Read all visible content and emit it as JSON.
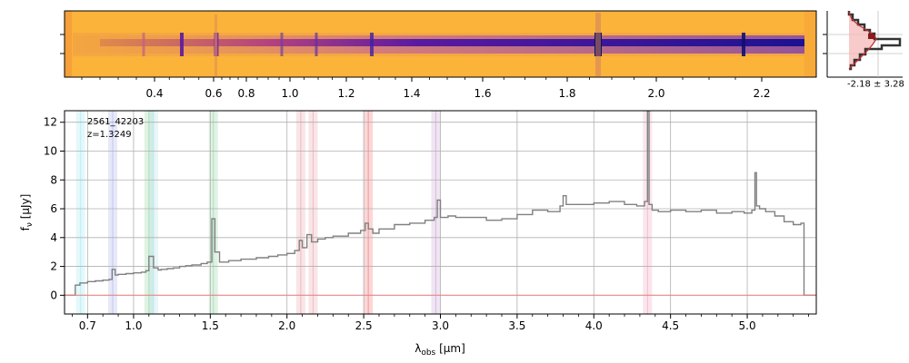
{
  "spectrum_2d": {
    "tick_labels": [
      "0.4",
      "0.6",
      "0.8",
      "1.0",
      "1.2",
      "1.4",
      "1.6",
      "1.8",
      "2.0",
      "2.2"
    ],
    "tick_values": [
      0.4,
      0.6,
      0.8,
      1.0,
      1.2,
      1.4,
      1.6,
      1.8,
      2.0,
      2.2
    ],
    "colormap": [
      "#fcb43a",
      "#f0853f",
      "#c94a6c",
      "#8a2aa0",
      "#3b0f96",
      "#1a1180"
    ]
  },
  "profile_panel": {
    "label": "-2.18 ± 3.28"
  },
  "chart_data": {
    "type": "line",
    "annotations": [
      "2561_42203",
      "z=1.3249"
    ],
    "xlabel": "λobs [μm]",
    "ylabel": "fν [μJy]",
    "xlim": [
      0.55,
      5.45
    ],
    "ylim": [
      -1.3,
      12.8
    ],
    "x_ticks": [
      0.7,
      1.0,
      1.5,
      2.0,
      2.5,
      3.0,
      3.5,
      4.0,
      4.5,
      5.0
    ],
    "x_tick_labels": [
      "0.7",
      "1.0",
      "1.5",
      "2.0",
      "2.5",
      "3.0",
      "3.5",
      "4.0",
      "4.5",
      "5.0"
    ],
    "y_ticks": [
      0,
      2,
      4,
      6,
      8,
      10,
      12
    ],
    "y_tick_labels": [
      "0",
      "2",
      "4",
      "6",
      "8",
      "10",
      "12"
    ],
    "grid": true,
    "series": [
      {
        "color": "#808080",
        "x": [
          0.55,
          0.6,
          0.62,
          0.65,
          0.7,
          0.75,
          0.8,
          0.84,
          0.86,
          0.88,
          0.9,
          0.95,
          1.0,
          1.05,
          1.08,
          1.1,
          1.13,
          1.16,
          1.18,
          1.22,
          1.26,
          1.3,
          1.34,
          1.38,
          1.44,
          1.48,
          1.51,
          1.53,
          1.56,
          1.62,
          1.7,
          1.8,
          1.88,
          1.94,
          2.0,
          2.05,
          2.08,
          2.1,
          2.13,
          2.16,
          2.2,
          2.25,
          2.3,
          2.4,
          2.48,
          2.51,
          2.53,
          2.56,
          2.6,
          2.7,
          2.8,
          2.9,
          2.96,
          2.98,
          3.0,
          3.05,
          3.1,
          3.2,
          3.3,
          3.4,
          3.5,
          3.6,
          3.7,
          3.78,
          3.8,
          3.82,
          3.9,
          4.0,
          4.1,
          4.2,
          4.28,
          4.33,
          4.35,
          4.36,
          4.38,
          4.42,
          4.5,
          4.6,
          4.7,
          4.8,
          4.9,
          4.98,
          5.03,
          5.05,
          5.06,
          5.08,
          5.12,
          5.18,
          5.24,
          5.3,
          5.35,
          5.37,
          5.37,
          5.4,
          5.45
        ],
        "y": [
          0.0,
          0.0,
          0.7,
          0.85,
          0.95,
          1.0,
          1.05,
          1.1,
          1.8,
          1.4,
          1.45,
          1.5,
          1.55,
          1.6,
          1.7,
          2.7,
          1.9,
          1.75,
          1.8,
          1.85,
          1.9,
          2.0,
          2.05,
          2.1,
          2.2,
          2.3,
          5.3,
          3.0,
          2.3,
          2.4,
          2.5,
          2.6,
          2.7,
          2.8,
          2.9,
          3.1,
          3.8,
          3.3,
          4.2,
          3.7,
          3.9,
          4.0,
          4.1,
          4.3,
          4.5,
          5.0,
          4.6,
          4.3,
          4.6,
          4.9,
          5.0,
          5.2,
          5.4,
          6.6,
          5.4,
          5.5,
          5.4,
          5.4,
          5.2,
          5.3,
          5.6,
          5.9,
          5.8,
          6.2,
          6.9,
          6.3,
          6.3,
          6.4,
          6.5,
          6.3,
          6.2,
          6.5,
          12.8,
          6.3,
          5.9,
          5.8,
          5.9,
          5.8,
          5.9,
          5.7,
          5.8,
          5.7,
          5.9,
          8.5,
          6.2,
          6.0,
          5.8,
          5.5,
          5.1,
          4.9,
          5.0,
          4.7,
          0.0,
          0.0,
          0.0
        ]
      },
      {
        "color": "#f08080",
        "x": [
          0.55,
          5.45
        ],
        "y": [
          0.0,
          0.0
        ]
      }
    ],
    "line_bands": [
      {
        "x": 0.655,
        "color": "#9fe6f0"
      },
      {
        "x": 0.864,
        "color": "#aab0e8"
      },
      {
        "x": 1.1,
        "color": "#8fd19e"
      },
      {
        "x": 1.13,
        "color": "#a8e0e8"
      },
      {
        "x": 1.52,
        "color": "#8fd19e"
      },
      {
        "x": 2.09,
        "color": "#e8a0a8"
      },
      {
        "x": 2.17,
        "color": "#e8a0a8"
      },
      {
        "x": 2.53,
        "color": "#f07070"
      },
      {
        "x": 2.97,
        "color": "#c8a0d0"
      },
      {
        "x": 4.35,
        "color": "#f0a0c0"
      }
    ]
  }
}
